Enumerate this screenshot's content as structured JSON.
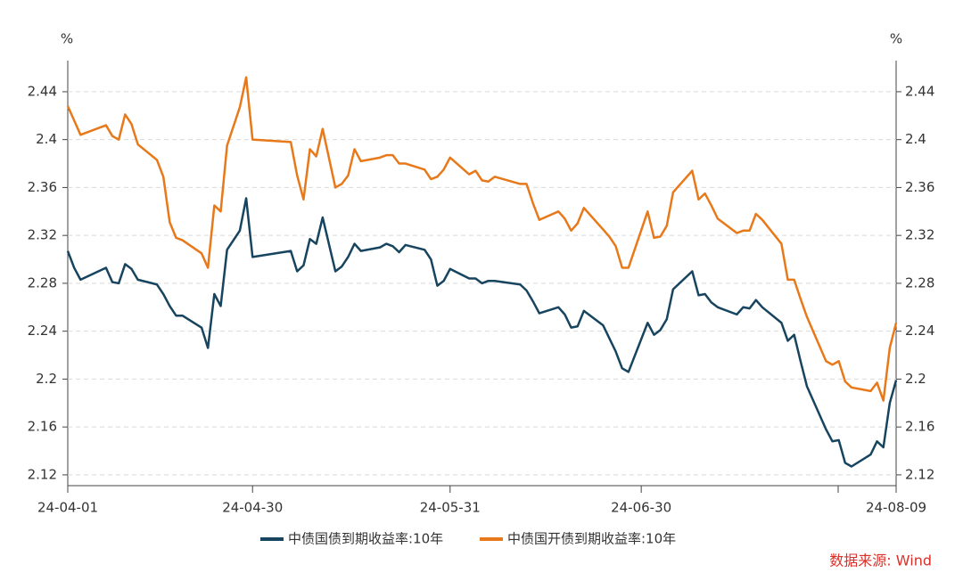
{
  "chart_data": {
    "type": "line",
    "yunit": "%",
    "y2unit": "%",
    "source": "数据来源: Wind",
    "x": [
      "24-04-01",
      "24-04-02",
      "24-04-03",
      "24-04-07",
      "24-04-08",
      "24-04-09",
      "24-04-10",
      "24-04-11",
      "24-04-12",
      "24-04-15",
      "24-04-16",
      "24-04-17",
      "24-04-18",
      "24-04-19",
      "24-04-22",
      "24-04-23",
      "24-04-24",
      "24-04-25",
      "24-04-26",
      "24-04-28",
      "24-04-29",
      "24-04-30",
      "24-05-06",
      "24-05-07",
      "24-05-08",
      "24-05-09",
      "24-05-10",
      "24-05-11",
      "24-05-13",
      "24-05-14",
      "24-05-15",
      "24-05-16",
      "24-05-17",
      "24-05-20",
      "24-05-21",
      "24-05-22",
      "24-05-23",
      "24-05-24",
      "24-05-27",
      "24-05-28",
      "24-05-29",
      "24-05-30",
      "24-05-31",
      "24-06-03",
      "24-06-04",
      "24-06-05",
      "24-06-06",
      "24-06-07",
      "24-06-11",
      "24-06-12",
      "24-06-13",
      "24-06-14",
      "24-06-17",
      "24-06-18",
      "24-06-19",
      "24-06-20",
      "24-06-21",
      "24-06-24",
      "24-06-25",
      "24-06-26",
      "24-06-27",
      "24-06-28",
      "24-07-01",
      "24-07-02",
      "24-07-03",
      "24-07-04",
      "24-07-05",
      "24-07-08",
      "24-07-09",
      "24-07-10",
      "24-07-11",
      "24-07-12",
      "24-07-15",
      "24-07-16",
      "24-07-17",
      "24-07-18",
      "24-07-19",
      "24-07-22",
      "24-07-23",
      "24-07-24",
      "24-07-25",
      "24-07-26",
      "24-07-29",
      "24-07-30",
      "24-07-31",
      "24-08-01",
      "24-08-02",
      "24-08-05",
      "24-08-06",
      "24-08-07",
      "24-08-08",
      "24-08-09"
    ],
    "series": [
      {
        "name": "中债国债到期收益率:10年",
        "color": "#17445e",
        "values": [
          2.307,
          2.293,
          2.283,
          2.293,
          2.281,
          2.28,
          2.296,
          2.292,
          2.283,
          2.279,
          2.271,
          2.261,
          2.253,
          2.253,
          2.243,
          2.226,
          2.271,
          2.261,
          2.308,
          2.324,
          2.351,
          2.302,
          2.307,
          2.29,
          2.295,
          2.317,
          2.313,
          2.335,
          2.29,
          2.294,
          2.302,
          2.313,
          2.307,
          2.31,
          2.313,
          2.311,
          2.306,
          2.312,
          2.308,
          2.3,
          2.278,
          2.282,
          2.292,
          2.284,
          2.284,
          2.28,
          2.282,
          2.282,
          2.279,
          2.274,
          2.265,
          2.255,
          2.26,
          2.254,
          2.243,
          2.244,
          2.257,
          2.245,
          2.234,
          2.223,
          2.209,
          2.206,
          2.247,
          2.237,
          2.241,
          2.25,
          2.275,
          2.29,
          2.27,
          2.271,
          2.264,
          2.26,
          2.254,
          2.26,
          2.259,
          2.266,
          2.26,
          2.247,
          2.232,
          2.237,
          2.215,
          2.194,
          2.158,
          2.148,
          2.149,
          2.13,
          2.127,
          2.137,
          2.148,
          2.143,
          2.18,
          2.199
        ]
      },
      {
        "name": "中债国开债到期收益率:10年",
        "color": "#e8791a",
        "values": [
          2.428,
          2.416,
          2.404,
          2.412,
          2.403,
          2.4,
          2.421,
          2.413,
          2.396,
          2.383,
          2.369,
          2.331,
          2.318,
          2.316,
          2.305,
          2.293,
          2.345,
          2.34,
          2.395,
          2.427,
          2.452,
          2.4,
          2.398,
          2.37,
          2.35,
          2.392,
          2.386,
          2.409,
          2.36,
          2.363,
          2.37,
          2.392,
          2.382,
          2.385,
          2.387,
          2.387,
          2.38,
          2.38,
          2.375,
          2.367,
          2.369,
          2.375,
          2.385,
          2.371,
          2.374,
          2.366,
          2.365,
          2.369,
          2.363,
          2.363,
          2.347,
          2.333,
          2.34,
          2.334,
          2.324,
          2.33,
          2.343,
          2.325,
          2.319,
          2.311,
          2.293,
          2.293,
          2.34,
          2.318,
          2.319,
          2.328,
          2.356,
          2.374,
          2.35,
          2.355,
          2.345,
          2.334,
          2.322,
          2.324,
          2.324,
          2.338,
          2.333,
          2.313,
          2.283,
          2.283,
          2.267,
          2.252,
          2.215,
          2.212,
          2.215,
          2.198,
          2.193,
          2.19,
          2.197,
          2.182,
          2.226,
          2.247
        ]
      }
    ],
    "xlim": [
      "24-04-01",
      "24-08-09"
    ],
    "xticks": [
      "24-04-01",
      "24-04-30",
      "24-05-31",
      "24-06-30",
      "24-08-09"
    ],
    "ylim": [
      2.111,
      2.466
    ],
    "yticks": [
      2.12,
      2.16,
      2.2,
      2.24,
      2.28,
      2.32,
      2.36,
      2.4,
      2.44
    ],
    "y2lim": [
      2.111,
      2.466
    ],
    "y2ticks": [
      2.12,
      2.16,
      2.2,
      2.24,
      2.28,
      2.32,
      2.36,
      2.4,
      2.44
    ],
    "grid": true
  }
}
